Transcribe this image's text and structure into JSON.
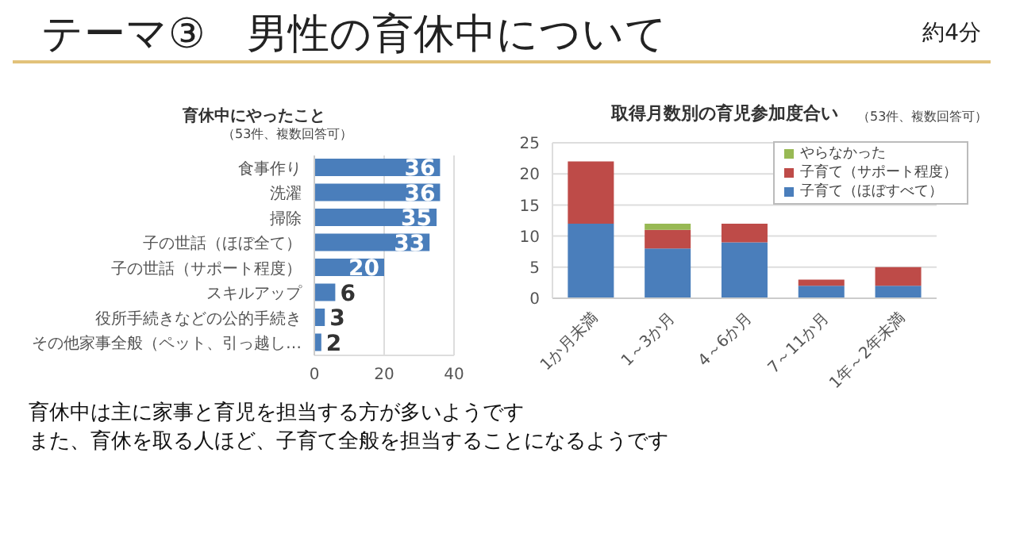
{
  "chart_data": [
    {
      "type": "bar",
      "orientation": "horizontal",
      "title": "育休中にやったこと",
      "subtitle": "（53件、複数回答可）",
      "annotations": [
        "テーマ③　男性の育休中について",
        "約4分"
      ],
      "categories": [
        "食事作り",
        "洗濯",
        "掃除",
        "子の世話（ほぼ全て）",
        "子の世話（サポート程度）",
        "スキルアップ",
        "役所手続きなどの公的手続き",
        "その他家事全般（ペット、引っ越し…"
      ],
      "values": [
        36,
        36,
        35,
        33,
        20,
        6,
        3,
        2
      ],
      "color": "#4a7ebb",
      "xlim": [
        0,
        40
      ],
      "xticks": [
        0,
        20,
        40
      ],
      "grid": "x",
      "data_labels": true
    },
    {
      "type": "bar",
      "stacked": true,
      "title": "取得月数別の育児参加度合い",
      "subtitle": "（53件、複数回答可）",
      "annotations": [
        "育休中は主に家事と育児を担当する方が多いようです",
        "また、育休を取る人ほど、子育て全般を担当することになるようです"
      ],
      "categories": [
        "1か月未満",
        "1～3か月",
        "4～6か月",
        "7～11か月",
        "1年～2年未満"
      ],
      "series": [
        {
          "name": "子育て（ほぼすべて）",
          "color": "#4a7ebb",
          "values": [
            12,
            8,
            9,
            2,
            2
          ]
        },
        {
          "name": "子育て（サポート程度）",
          "color": "#be4b48",
          "values": [
            10,
            3,
            3,
            1,
            3
          ]
        },
        {
          "name": "やらなかった",
          "color": "#98b954",
          "values": [
            0,
            1,
            0,
            0,
            0
          ]
        }
      ],
      "ylim": [
        0,
        25
      ],
      "yticks": [
        0,
        5,
        10,
        15,
        20,
        25
      ],
      "grid": "y",
      "legend": "top right"
    }
  ]
}
